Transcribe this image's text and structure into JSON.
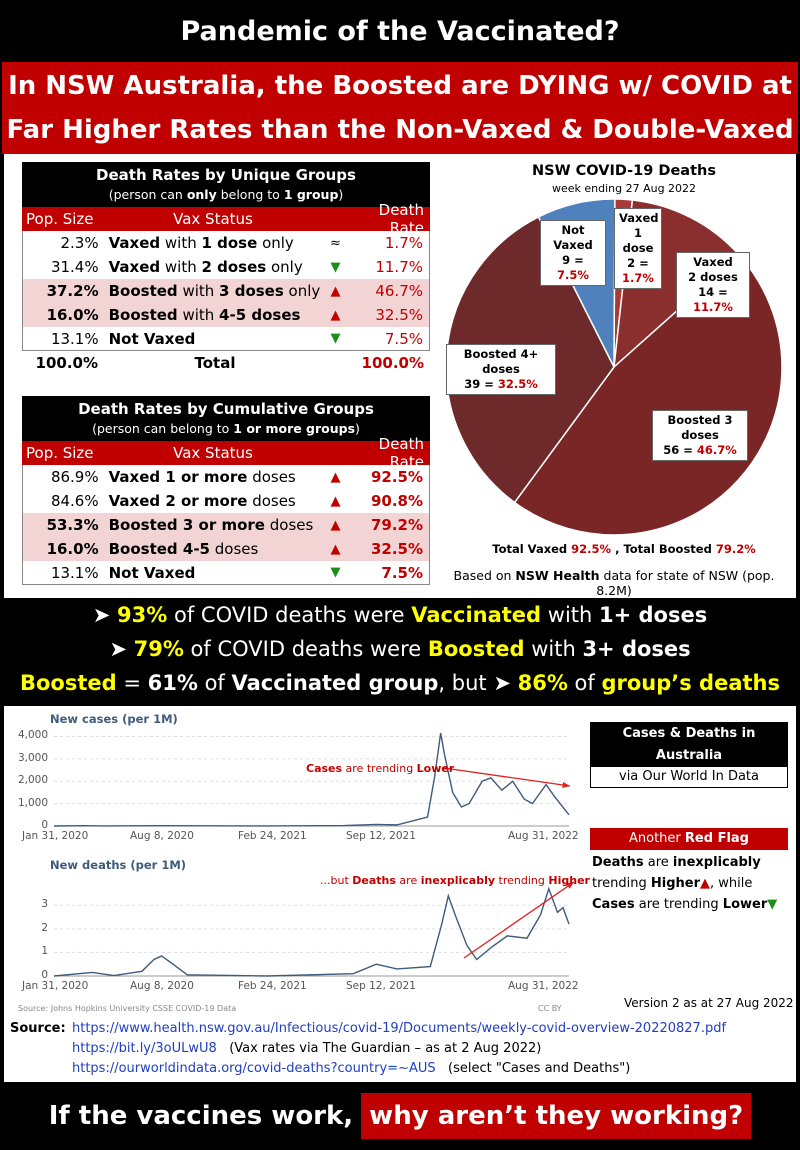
{
  "header": {
    "title": "Pandemic of the Vaccinated?",
    "headline_line1": "In NSW Australia, the Boosted are DYING w/ COVID at",
    "headline_line2": "Far Higher Rates than the Non-Vaxed & Double-Vaxed"
  },
  "table_unique": {
    "title": "Death Rates by Unique Groups",
    "subtitle_pre": "(person can ",
    "subtitle_b1": "only",
    "subtitle_mid": " belong to ",
    "subtitle_b2": "1 group",
    "subtitle_post": ")",
    "col_pop": "Pop. Size",
    "col_status": "Vax Status",
    "col_rate": "Death Rate",
    "rows": [
      {
        "pop": "2.3%",
        "status_b1": "Vaxed",
        "status_n1": " with ",
        "status_b2": "1 dose",
        "status_n2": " only",
        "arrow": "≈",
        "rate": "1.7%"
      },
      {
        "pop": "31.4%",
        "status_b1": "Vaxed",
        "status_n1": " with ",
        "status_b2": "2 doses",
        "status_n2": " only",
        "arrow": "▼",
        "rate": "11.7%"
      },
      {
        "pop": "37.2%",
        "status_b1": "Boosted",
        "status_n1": " with ",
        "status_b2": "3 doses",
        "status_n2": " only",
        "arrow": "▲",
        "rate": "46.7%"
      },
      {
        "pop": "16.0%",
        "status_b1": "Boosted",
        "status_n1": " with ",
        "status_b2": "4-5 doses",
        "status_n2": "",
        "arrow": "▲",
        "rate": "32.5%"
      },
      {
        "pop": "13.1%",
        "status_b1": "Not Vaxed",
        "status_n1": "",
        "status_b2": "",
        "status_n2": "",
        "arrow": "▼",
        "rate": "7.5%"
      }
    ],
    "total_pop": "100.0%",
    "total_label": "Total",
    "total_rate": "100.0%"
  },
  "table_cumulative": {
    "title": "Death Rates by Cumulative Groups",
    "subtitle_pre": "(person can belong to ",
    "subtitle_b1": "1 or more groups",
    "subtitle_post": ")",
    "col_pop": "Pop. Size",
    "col_status": "Vax Status",
    "col_rate": "Death Rate",
    "rows": [
      {
        "pop": "86.9%",
        "status_b1": "Vaxed 1 or more",
        "status_n1": " doses",
        "arrow": "▲",
        "rate": "92.5%"
      },
      {
        "pop": "84.6%",
        "status_b1": "Vaxed 2 or more",
        "status_n1": " doses",
        "arrow": "▲",
        "rate": "90.8%"
      },
      {
        "pop": "53.3%",
        "status_b1": "Boosted 3 or more",
        "status_n1": " doses",
        "arrow": "▲",
        "rate": "79.2%"
      },
      {
        "pop": "16.0%",
        "status_b1": "Boosted 4-5",
        "status_n1": " doses",
        "arrow": "▲",
        "rate": "32.5%"
      },
      {
        "pop": "13.1%",
        "status_b1": "Not Vaxed",
        "status_n1": "",
        "arrow": "▼",
        "rate": "7.5%"
      }
    ]
  },
  "pie": {
    "title": "NSW COVID-19 Deaths",
    "subtitle": "week ending 27 Aug 2022",
    "total_pre": "Total Vaxed ",
    "total_vaxed": "92.5%",
    "total_mid": " , Total Boosted ",
    "total_boosted": "79.2%",
    "basis_pre": "Based on ",
    "basis_b": "NSW Health",
    "basis_post": " data for state of NSW (pop. 8.2M)"
  },
  "chart_data": [
    {
      "type": "pie",
      "title": "NSW COVID-19 Deaths",
      "subtitle": "week ending 27 Aug 2022",
      "slices": [
        {
          "label": "Vaxed 1 dose",
          "count": 2,
          "percent": 1.7,
          "color": "#a83a3a"
        },
        {
          "label": "Vaxed 2 doses",
          "count": 14,
          "percent": 11.7,
          "color": "#8b2e2e"
        },
        {
          "label": "Boosted 3 doses",
          "count": 56,
          "percent": 46.7,
          "color": "#7a2626"
        },
        {
          "label": "Boosted 4+ doses",
          "count": 39,
          "percent": 32.5,
          "color": "#6e2a2a"
        },
        {
          "label": "Not Vaxed",
          "count": 9,
          "percent": 7.5,
          "color": "#4f81bd"
        }
      ],
      "labels": [
        {
          "l1": "Vaxed",
          "l2": "1 dose",
          "l3n": "2 = ",
          "l3v": "1.7%"
        },
        {
          "l1": "Vaxed",
          "l2": "2 doses",
          "l3n": "14 = ",
          "l3v": "11.7%"
        },
        {
          "l1": "Boosted 3 doses",
          "l2": "",
          "l3n": "56 = ",
          "l3v": "46.7%"
        },
        {
          "l1": "Boosted 4+ doses",
          "l2": "",
          "l3n": "39 = ",
          "l3v": "32.5%"
        },
        {
          "l1": "Not Vaxed",
          "l2": "",
          "l3n": "9 = ",
          "l3v": "7.5%"
        }
      ]
    },
    {
      "type": "line",
      "title": "New cases (per 1M)",
      "ylim": [
        0,
        4200
      ],
      "yticks": [
        "0",
        "1,000",
        "2,000",
        "3,000",
        "4,000"
      ],
      "xticks": [
        "Jan 31, 2020",
        "Aug 8, 2020",
        "Feb 24, 2021",
        "Sep 12, 2021",
        "Aug 31, 2022"
      ],
      "points": [
        {
          "x": "2020-01-31",
          "y": 0
        },
        {
          "x": "2020-03-25",
          "y": 15
        },
        {
          "x": "2020-05-01",
          "y": 2
        },
        {
          "x": "2020-08-08",
          "y": 15
        },
        {
          "x": "2021-02-24",
          "y": 1
        },
        {
          "x": "2021-07-15",
          "y": 20
        },
        {
          "x": "2021-09-12",
          "y": 70
        },
        {
          "x": "2021-10-20",
          "y": 50
        },
        {
          "x": "2021-12-15",
          "y": 400
        },
        {
          "x": "2021-12-28",
          "y": 2200
        },
        {
          "x": "2022-01-08",
          "y": 4150
        },
        {
          "x": "2022-01-15",
          "y": 3200
        },
        {
          "x": "2022-01-30",
          "y": 1500
        },
        {
          "x": "2022-02-15",
          "y": 850
        },
        {
          "x": "2022-03-01",
          "y": 1000
        },
        {
          "x": "2022-03-25",
          "y": 2000
        },
        {
          "x": "2022-04-10",
          "y": 2150
        },
        {
          "x": "2022-04-30",
          "y": 1600
        },
        {
          "x": "2022-05-20",
          "y": 2000
        },
        {
          "x": "2022-06-10",
          "y": 1200
        },
        {
          "x": "2022-06-25",
          "y": 1000
        },
        {
          "x": "2022-07-20",
          "y": 1850
        },
        {
          "x": "2022-08-05",
          "y": 1300
        },
        {
          "x": "2022-08-31",
          "y": 500
        }
      ],
      "annotation_b1": "Cases",
      "annotation_n": " are trending ",
      "annotation_b2": "Lower"
    },
    {
      "type": "line",
      "title": "New deaths (per 1M)",
      "ylim": [
        0,
        3.9
      ],
      "yticks": [
        "0",
        "1",
        "2",
        "3"
      ],
      "xticks": [
        "Jan 31, 2020",
        "Aug 8, 2020",
        "Feb 24, 2021",
        "Sep 12, 2021",
        "Aug 31, 2022"
      ],
      "points": [
        {
          "x": "2020-01-31",
          "y": 0
        },
        {
          "x": "2020-04-10",
          "y": 0.15
        },
        {
          "x": "2020-05-20",
          "y": 0.02
        },
        {
          "x": "2020-07-10",
          "y": 0.2
        },
        {
          "x": "2020-08-01",
          "y": 0.7
        },
        {
          "x": "2020-08-15",
          "y": 0.85
        },
        {
          "x": "2020-09-05",
          "y": 0.5
        },
        {
          "x": "2020-10-01",
          "y": 0.05
        },
        {
          "x": "2021-02-24",
          "y": 0
        },
        {
          "x": "2021-08-01",
          "y": 0.1
        },
        {
          "x": "2021-09-12",
          "y": 0.5
        },
        {
          "x": "2021-10-20",
          "y": 0.3
        },
        {
          "x": "2021-12-20",
          "y": 0.4
        },
        {
          "x": "2022-01-10",
          "y": 2.2
        },
        {
          "x": "2022-01-22",
          "y": 3.4
        },
        {
          "x": "2022-02-05",
          "y": 2.5
        },
        {
          "x": "2022-02-25",
          "y": 1.3
        },
        {
          "x": "2022-03-15",
          "y": 0.7
        },
        {
          "x": "2022-04-10",
          "y": 1.2
        },
        {
          "x": "2022-05-10",
          "y": 1.7
        },
        {
          "x": "2022-06-15",
          "y": 1.6
        },
        {
          "x": "2022-07-10",
          "y": 2.6
        },
        {
          "x": "2022-07-25",
          "y": 3.7
        },
        {
          "x": "2022-08-10",
          "y": 2.7
        },
        {
          "x": "2022-08-20",
          "y": 2.9
        },
        {
          "x": "2022-08-31",
          "y": 2.2
        }
      ],
      "annotation_pre": "...but ",
      "annotation_b1": "Deaths",
      "annotation_n": " are ",
      "annotation_b2": "inexplicably",
      "annotation_n2": " trending ",
      "annotation_b3": "Higher"
    }
  ],
  "summary": {
    "line1_pct": "93%",
    "line1_a": " of COVID deaths were ",
    "line1_b": "Vaccinated",
    "line1_c": " with ",
    "line1_d": "1+ doses",
    "line2_pct": "79%",
    "line2_a": " of COVID deaths were ",
    "line2_b": "Boosted",
    "line2_c": " with ",
    "line2_d": "3+ doses",
    "line3_a": "Boosted",
    "line3_b": " = ",
    "line3_c": "61%",
    "line3_d": " of ",
    "line3_e": "Vaccinated group",
    "line3_f": ", but ",
    "line3_g": "86%",
    "line3_h": " of ",
    "line3_i": "group’s deaths"
  },
  "side": {
    "box_title": "Cases & Deaths in Australia",
    "box_sub": "via Our World In Data",
    "flag_pre": "Another ",
    "flag_b": "Red Flag",
    "note_b1": "Deaths",
    "note_n1": " are ",
    "note_b2": "inexplicably",
    "note_n2": "trending ",
    "note_b3": "Higher",
    "note_n3": ", while",
    "note_b4": "Cases",
    "note_n4": " are trending ",
    "note_b5": "Lower",
    "version": "Version 2 as at 27 Aug 2022",
    "chart_source": "Source: Johns Hopkins University CSSE COVID-19 Data",
    "cc": "CC BY"
  },
  "sources": {
    "label": "Source:",
    "url1": "https://www.health.nsw.gov.au/Infectious/covid-19/Documents/weekly-covid-overview-20220827.pdf",
    "url2": "https://bit.ly/3oULwU8",
    "note2": "(Vax rates via The Guardian – as at 2 Aug 2022)",
    "url3": "https://ourworldindata.org/covid-deaths?country=~AUS",
    "note3": "(select \"Cases and Deaths\")"
  },
  "footer": {
    "left": "If the vaccines work,",
    "right": "why aren’t they working?"
  },
  "colors": {
    "red": "#c00000",
    "yellow": "#ffff00",
    "blue": "#4f81bd",
    "owid_line": "#3f5b7c",
    "up_arrow": "#c00000",
    "down_arrow": "#1a8f1a"
  }
}
